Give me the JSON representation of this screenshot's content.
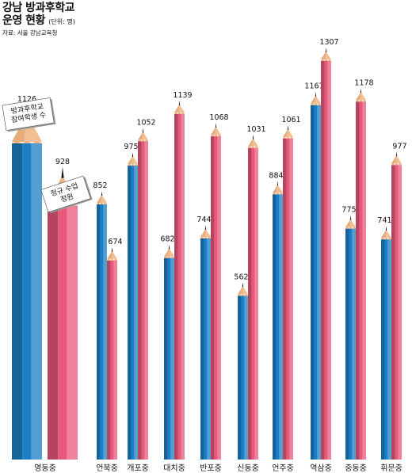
{
  "chart_data": {
    "type": "bar",
    "title": "강남 방과후학교",
    "title_line2": "운영 현황",
    "unit": "(단위: 명)",
    "source": "자료: 서울 강남교육청",
    "categories": [
      "영동중",
      "언북중",
      "개포중",
      "대치중",
      "반포중",
      "신동중",
      "언주중",
      "역삼중",
      "중동중",
      "휘문중"
    ],
    "series": [
      {
        "name": "방과후학교 참여학생 수",
        "color": "#1a7fc6",
        "values": [
          1126,
          852,
          975,
          682,
          744,
          562,
          884,
          1167,
          775,
          741
        ]
      },
      {
        "name": "정규 수업 정원",
        "color": "#e8587a",
        "values": [
          928,
          674,
          1052,
          1139,
          1068,
          1031,
          1061,
          1307,
          1178,
          977
        ]
      }
    ],
    "callouts": [
      {
        "series": 0,
        "lines": [
          "방과후학교",
          "참여학생 수"
        ]
      },
      {
        "series": 1,
        "lines": [
          "정규 수업",
          "정원"
        ]
      }
    ],
    "grid": false,
    "legend": "callouts on first group"
  }
}
